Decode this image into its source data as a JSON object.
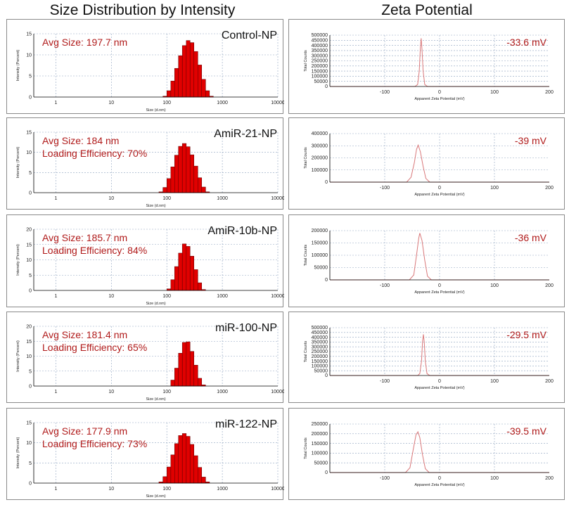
{
  "titles": {
    "left": "Size Distribution by Intensity",
    "right": "Zeta Potential"
  },
  "chart_data": [
    {
      "type": "bar",
      "panel": "size",
      "sample": "Control-NP",
      "avg_size": "Avg Size: 197.7 nm",
      "loading": "",
      "ylabel": "Intensity (Percent)",
      "xlabel": "Size (d.nm)",
      "ylim": [
        0,
        15
      ],
      "yticks": [
        0,
        5,
        10,
        15
      ],
      "xlim_log": [
        0.4,
        10000
      ],
      "xticks": [
        "1",
        "10",
        "100",
        "1000",
        "10000"
      ],
      "bins": [
        85,
        100,
        118,
        138,
        162,
        190,
        224,
        262,
        308,
        362,
        425,
        500,
        587
      ],
      "values": [
        0.2,
        1.5,
        3.8,
        6.8,
        9.8,
        12.2,
        13.4,
        12.9,
        10.8,
        7.6,
        4.2,
        1.5,
        0.2
      ]
    },
    {
      "type": "bar",
      "panel": "size",
      "sample": "AmiR-21-NP",
      "avg_size": "Avg Size: 184 nm",
      "loading": "Loading Efficiency: 70%",
      "ylabel": "Intensity (Percent)",
      "xlabel": "Size (d.nm)",
      "ylim": [
        0,
        15
      ],
      "yticks": [
        0,
        5,
        10,
        15
      ],
      "xlim_log": [
        0.4,
        10000
      ],
      "xticks": [
        "1",
        "10",
        "100",
        "1000",
        "10000"
      ],
      "bins": [
        72,
        85,
        100,
        118,
        138,
        162,
        190,
        224,
        262,
        308,
        362,
        425,
        500
      ],
      "values": [
        0.2,
        1.3,
        3.5,
        6.4,
        9.3,
        11.5,
        12.2,
        11.4,
        9.4,
        6.6,
        3.7,
        1.4,
        0.2
      ]
    },
    {
      "type": "bar",
      "panel": "size",
      "sample": "AmiR-10b-NP",
      "avg_size": "Avg Size: 185.7 nm",
      "loading": "Loading Efficiency: 84%",
      "ylabel": "Intensity (Percent)",
      "xlabel": "Size (d.nm)",
      "ylim": [
        0,
        20
      ],
      "yticks": [
        0,
        5,
        10,
        15,
        20
      ],
      "xlim_log": [
        0.4,
        10000
      ],
      "xticks": [
        "1",
        "10",
        "100",
        "1000",
        "10000"
      ],
      "bins": [
        100,
        118,
        138,
        162,
        190,
        224,
        262,
        308,
        362,
        425
      ],
      "values": [
        0.5,
        3.5,
        7.8,
        12.2,
        15.2,
        14.4,
        11.2,
        6.8,
        2.5,
        0.3
      ]
    },
    {
      "type": "bar",
      "panel": "size",
      "sample": "miR-100-NP",
      "avg_size": "Avg Size: 181.4 nm",
      "loading": "Loading Efficiency: 65%",
      "ylabel": "Intensity (Percent)",
      "xlabel": "Size (d.nm)",
      "ylim": [
        0,
        20
      ],
      "yticks": [
        0,
        5,
        10,
        15,
        20
      ],
      "xlim_log": [
        0.4,
        10000
      ],
      "xticks": [
        "1",
        "10",
        "100",
        "1000",
        "10000"
      ],
      "bins": [
        118,
        138,
        162,
        190,
        224,
        262,
        308,
        362,
        425
      ],
      "values": [
        2.0,
        6.0,
        11.0,
        14.6,
        14.8,
        11.6,
        7.0,
        2.6,
        0.4
      ]
    },
    {
      "type": "bar",
      "panel": "size",
      "sample": "miR-122-NP",
      "avg_size": "Avg Size: 177.9 nm",
      "loading": "Loading Efficiency: 73%",
      "ylabel": "Intensity (Percent)",
      "xlabel": "Size (d.nm)",
      "ylim": [
        0,
        15
      ],
      "yticks": [
        0,
        5,
        10,
        15
      ],
      "xlim_log": [
        0.4,
        10000
      ],
      "xticks": [
        "1",
        "10",
        "100",
        "1000",
        "10000"
      ],
      "bins": [
        72,
        85,
        100,
        118,
        138,
        162,
        190,
        224,
        262,
        308,
        362,
        425,
        500
      ],
      "values": [
        0.3,
        1.6,
        4.0,
        7.0,
        9.8,
        11.8,
        12.3,
        11.6,
        9.6,
        6.8,
        3.9,
        1.5,
        0.3
      ]
    },
    {
      "type": "line",
      "panel": "zeta",
      "value_label": "-33.6 mV",
      "ylabel": "Total Counts",
      "xlabel": "Apparent Zeta Potential (mV)",
      "ylim": [
        0,
        500000
      ],
      "yticks": [
        "0",
        "50000",
        "100000",
        "150000",
        "200000",
        "250000",
        "300000",
        "350000",
        "400000",
        "450000",
        "500000"
      ],
      "xlim": [
        -200,
        200
      ],
      "xticks": [
        "-100",
        "0",
        "100",
        "200"
      ],
      "x": [
        -200,
        -45,
        -40,
        -37,
        -35,
        -33.6,
        -32,
        -30,
        -27,
        -22,
        200
      ],
      "y": [
        0,
        0,
        20000,
        150000,
        380000,
        470000,
        360000,
        150000,
        20000,
        0,
        0
      ]
    },
    {
      "type": "line",
      "panel": "zeta",
      "value_label": "-39 mV",
      "ylabel": "Total Counts",
      "xlabel": "Apparent Zeta Potential (mV)",
      "ylim": [
        0,
        400000
      ],
      "yticks": [
        "0",
        "100000",
        "200000",
        "300000",
        "400000"
      ],
      "xlim": [
        -200,
        200
      ],
      "xticks": [
        "-100",
        "0",
        "100",
        "200"
      ],
      "x": [
        -200,
        -60,
        -52,
        -46,
        -42,
        -39,
        -35,
        -30,
        -25,
        -18,
        200
      ],
      "y": [
        0,
        0,
        40000,
        160000,
        270000,
        305000,
        250000,
        130000,
        30000,
        0,
        0
      ]
    },
    {
      "type": "line",
      "panel": "zeta",
      "value_label": "-36 mV",
      "ylabel": "Total Counts",
      "xlabel": "Apparent Zeta Potential (mV)",
      "ylim": [
        0,
        200000
      ],
      "yticks": [
        "0",
        "50000",
        "100000",
        "150000",
        "200000"
      ],
      "xlim": [
        -200,
        200
      ],
      "xticks": [
        "-100",
        "0",
        "100",
        "200"
      ],
      "x": [
        -200,
        -55,
        -47,
        -42,
        -38,
        -36,
        -32,
        -27,
        -22,
        -15,
        200
      ],
      "y": [
        0,
        0,
        20000,
        100000,
        170000,
        190000,
        160000,
        80000,
        15000,
        0,
        0
      ]
    },
    {
      "type": "line",
      "panel": "zeta",
      "value_label": "-29.5 mV",
      "ylabel": "Total Counts",
      "xlabel": "Apparent Zeta Potential (mV)",
      "ylim": [
        0,
        500000
      ],
      "yticks": [
        "0",
        "50000",
        "100000",
        "150000",
        "200000",
        "250000",
        "300000",
        "350000",
        "400000",
        "450000",
        "500000"
      ],
      "xlim": [
        -200,
        200
      ],
      "xticks": [
        "-100",
        "0",
        "100",
        "200"
      ],
      "x": [
        -200,
        -40,
        -36,
        -33,
        -31,
        -29.5,
        -28,
        -26,
        -23,
        -18,
        200
      ],
      "y": [
        0,
        0,
        20000,
        150000,
        360000,
        430000,
        350000,
        150000,
        20000,
        0,
        0
      ]
    },
    {
      "type": "line",
      "panel": "zeta",
      "value_label": "-39.5 mV",
      "ylabel": "Total Counts",
      "xlabel": "Apparent Zeta Potential (mV)",
      "ylim": [
        0,
        250000
      ],
      "yticks": [
        "0",
        "50000",
        "100000",
        "150000",
        "200000",
        "250000"
      ],
      "xlim": [
        -200,
        200
      ],
      "xticks": [
        "-100",
        "0",
        "100",
        "200"
      ],
      "x": [
        -200,
        -62,
        -54,
        -48,
        -43,
        -39.5,
        -36,
        -31,
        -26,
        -19,
        200
      ],
      "y": [
        0,
        0,
        25000,
        120000,
        195000,
        210000,
        180000,
        90000,
        20000,
        0,
        0
      ]
    }
  ]
}
